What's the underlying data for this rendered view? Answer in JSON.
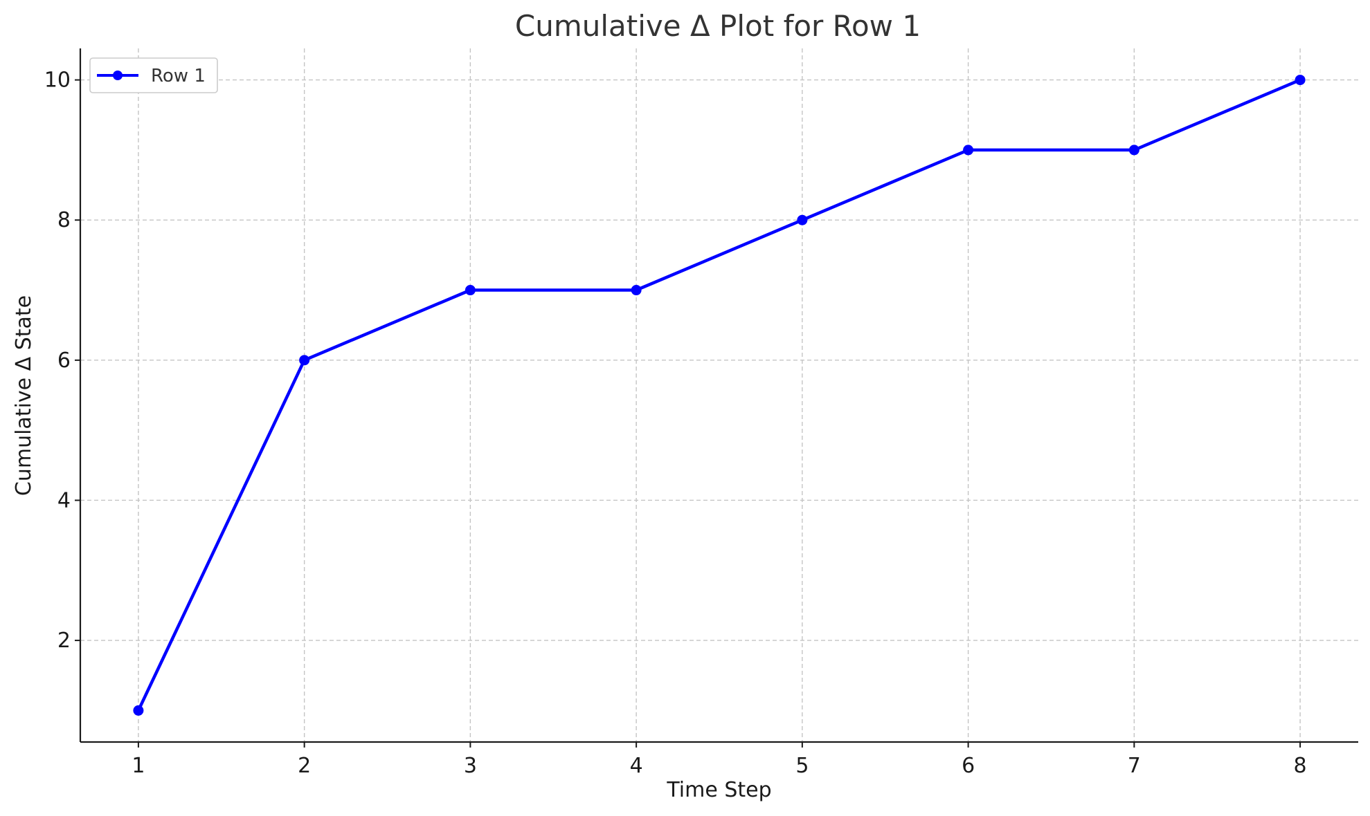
{
  "chart_data": {
    "type": "line",
    "title": "Cumulative Δ Plot for Row 1",
    "xlabel": "Time Step",
    "ylabel": "Cumulative Δ State",
    "x": [
      1,
      2,
      3,
      4,
      5,
      6,
      7,
      8
    ],
    "series": [
      {
        "name": "Row 1",
        "values": [
          1,
          6,
          7,
          7,
          8,
          9,
          9,
          10
        ],
        "color": "#0000ff",
        "marker": "circle"
      }
    ],
    "xlim": [
      0.65,
      8.35
    ],
    "ylim": [
      0.55,
      10.45
    ],
    "xticks": [
      "1",
      "2",
      "3",
      "4",
      "5",
      "6",
      "7",
      "8"
    ],
    "yticks": [
      "2",
      "4",
      "6",
      "8",
      "10"
    ],
    "grid": true,
    "legend": "top-left"
  }
}
